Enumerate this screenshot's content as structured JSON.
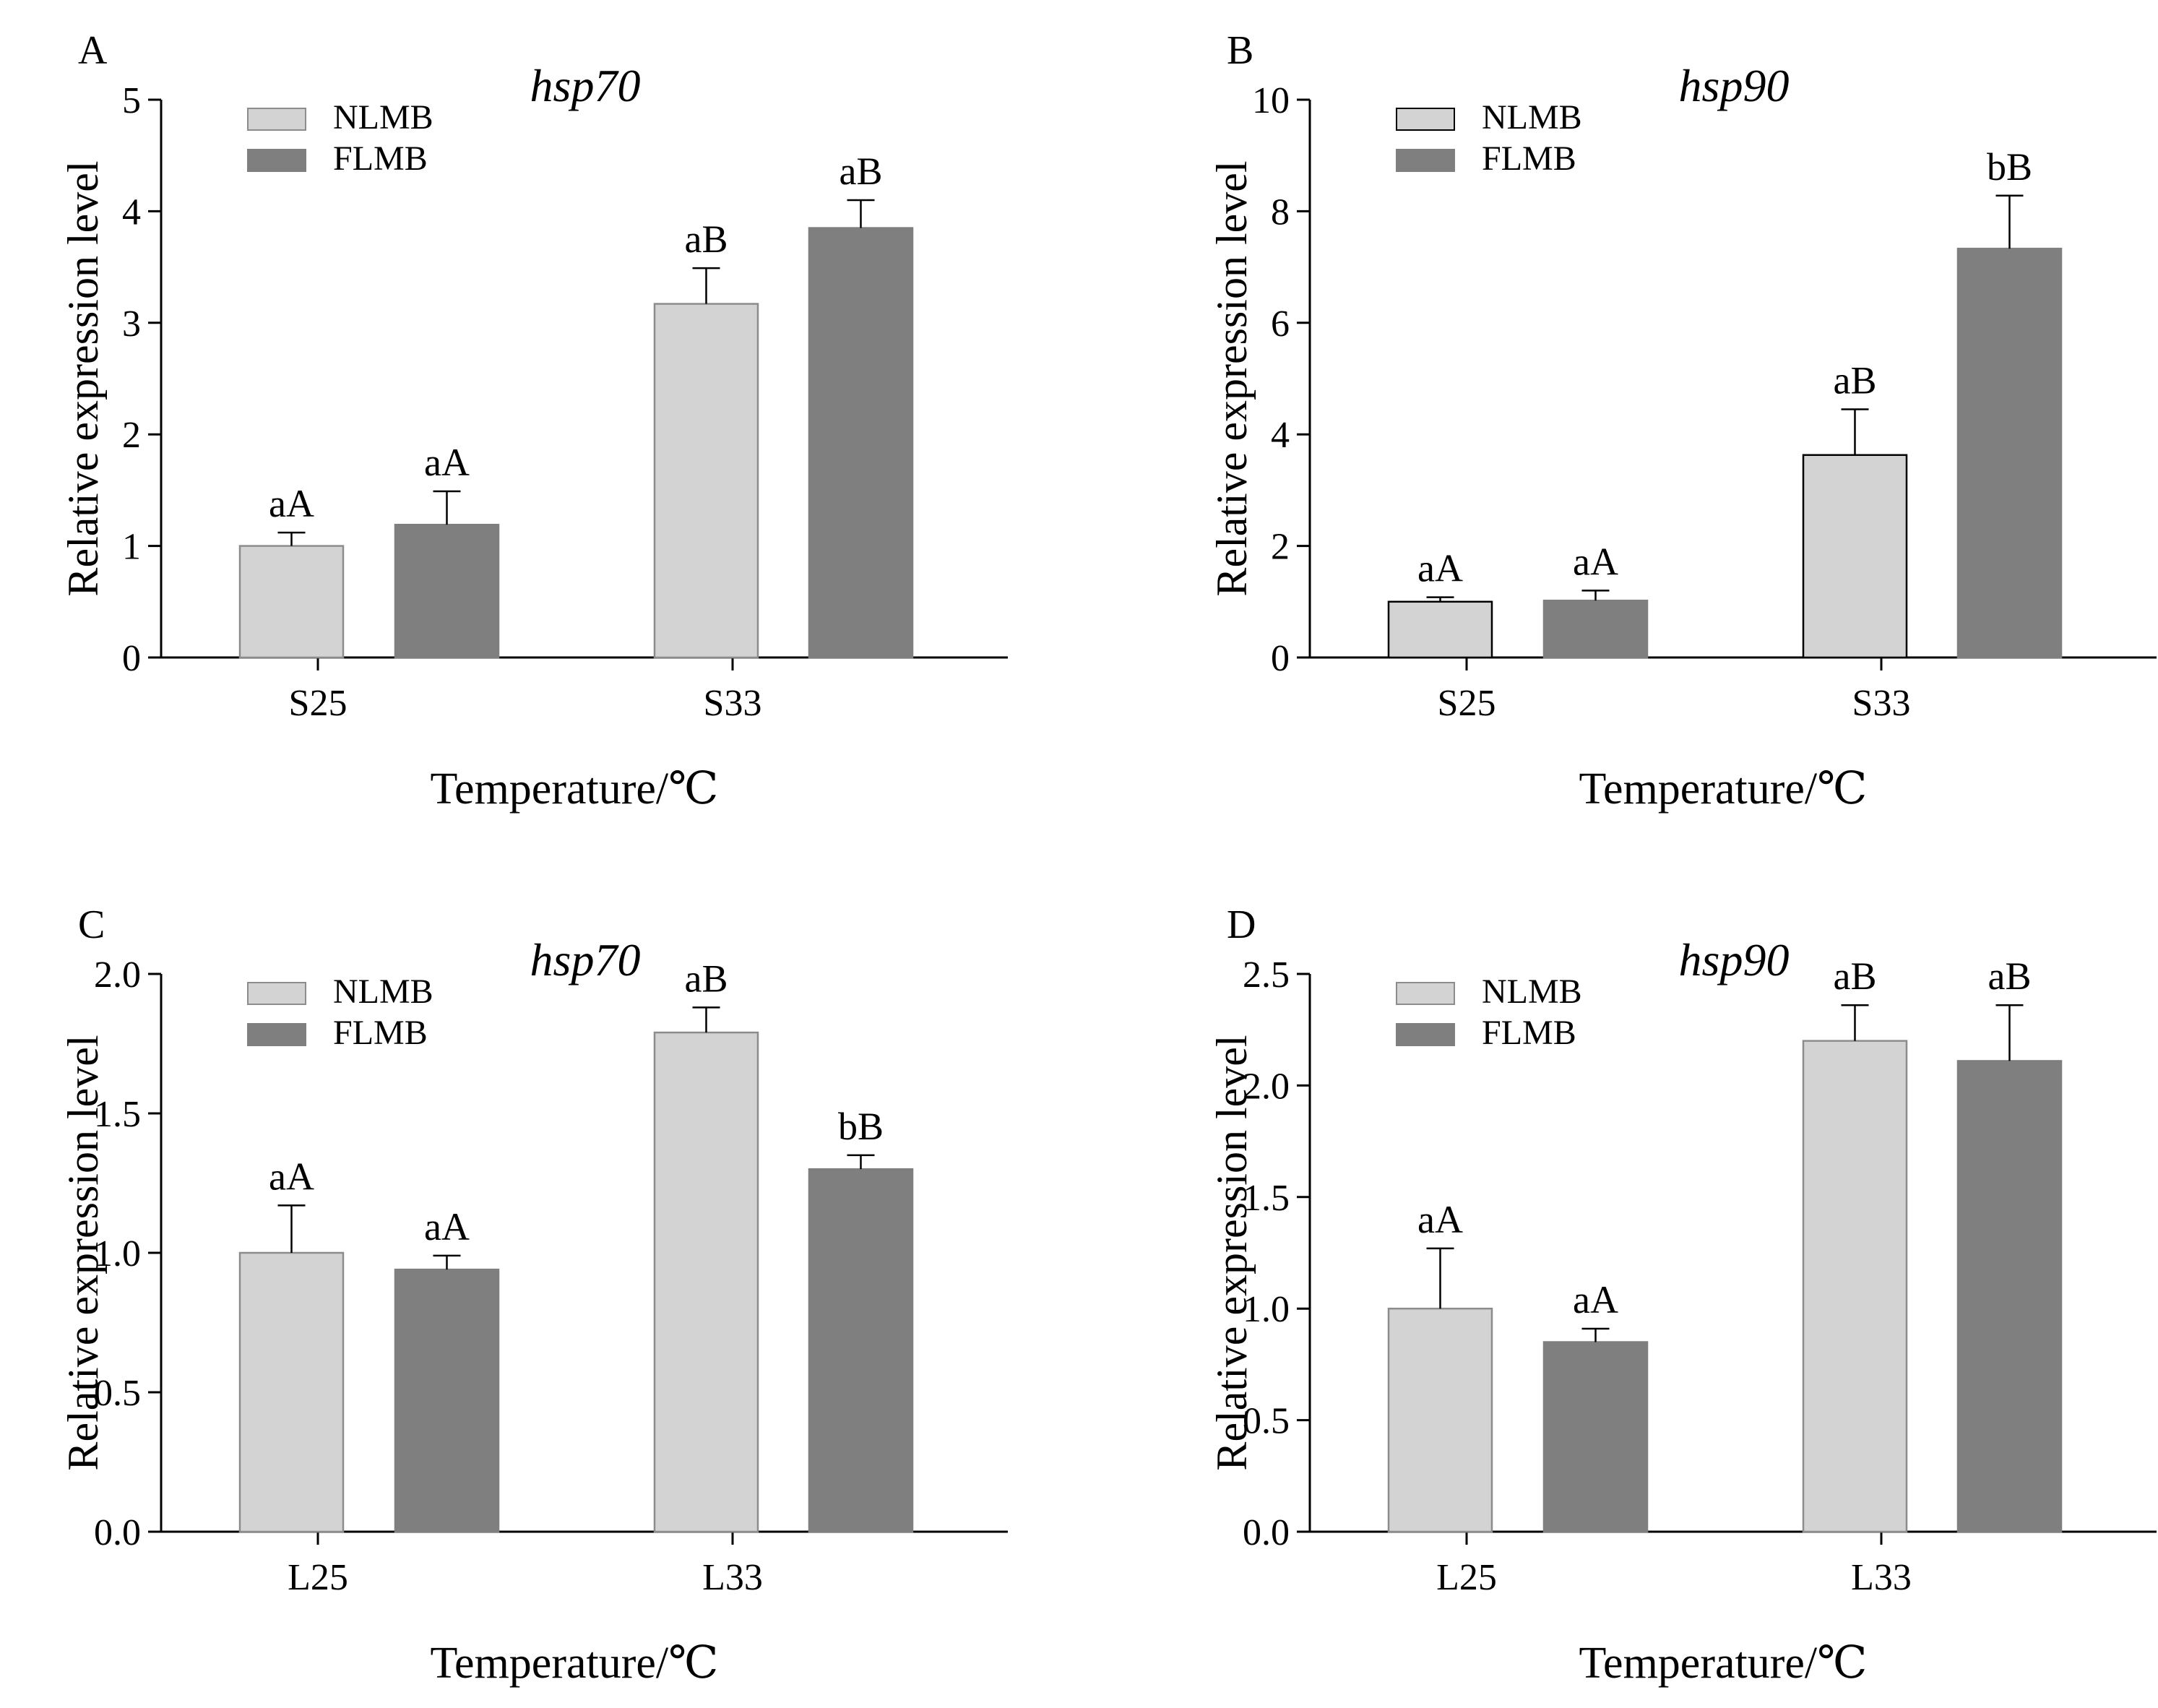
{
  "figure": {
    "colors": {
      "nlmb": "#d3d3d3",
      "flmb": "#7f7f7f",
      "axis": "#000000",
      "nlmb_edge": "#8c8c8c",
      "nlmb_edge_panel_b": "#000000"
    }
  },
  "chart_data": [
    {
      "panel": "A",
      "type": "bar",
      "title": "hsp70",
      "xlabel": "Temperature/℃",
      "ylabel": "Relative expression level",
      "categories": [
        "S25",
        "S33"
      ],
      "ylim": [
        0,
        5
      ],
      "yticks": [
        0,
        1,
        2,
        3,
        4,
        5
      ],
      "yticklabels": [
        "0",
        "1",
        "2",
        "3",
        "4",
        "5"
      ],
      "legend": [
        "NLMB",
        "FLMB"
      ],
      "legend_position": "top-left",
      "series": [
        {
          "name": "NLMB",
          "values": [
            1.0,
            3.17
          ],
          "errors": [
            0.12,
            0.32
          ],
          "labels": [
            "aA",
            "aB"
          ]
        },
        {
          "name": "FLMB",
          "values": [
            1.19,
            3.85
          ],
          "errors": [
            0.3,
            0.25
          ],
          "labels": [
            "aA",
            "aB"
          ]
        }
      ]
    },
    {
      "panel": "B",
      "type": "bar",
      "title": "hsp90",
      "xlabel": "Temperature/℃",
      "ylabel": "Relative expression level",
      "categories": [
        "S25",
        "S33"
      ],
      "ylim": [
        0,
        10
      ],
      "yticks": [
        0,
        2,
        4,
        6,
        8,
        10
      ],
      "yticklabels": [
        "0",
        "2",
        "4",
        "6",
        "8",
        "10"
      ],
      "legend": [
        "NLMB",
        "FLMB"
      ],
      "legend_position": "top-left",
      "series": [
        {
          "name": "NLMB",
          "values": [
            1.0,
            3.63
          ],
          "errors": [
            0.08,
            0.82
          ],
          "labels": [
            "aA",
            "aB"
          ]
        },
        {
          "name": "FLMB",
          "values": [
            1.02,
            7.33
          ],
          "errors": [
            0.18,
            0.95
          ],
          "labels": [
            "aA",
            "bB"
          ]
        }
      ]
    },
    {
      "panel": "C",
      "type": "bar",
      "title": "hsp70",
      "xlabel": "Temperature/℃",
      "ylabel": "Relative expression level",
      "categories": [
        "L25",
        "L33"
      ],
      "ylim": [
        0,
        2.0
      ],
      "yticks": [
        0,
        0.5,
        1.0,
        1.5,
        2.0
      ],
      "yticklabels": [
        "0.0",
        "0.5",
        "1.0",
        "1.5",
        "2.0"
      ],
      "legend": [
        "NLMB",
        "FLMB"
      ],
      "legend_position": "top-left",
      "series": [
        {
          "name": "NLMB",
          "values": [
            1.0,
            1.79
          ],
          "errors": [
            0.17,
            0.09
          ],
          "labels": [
            "aA",
            "aB"
          ]
        },
        {
          "name": "FLMB",
          "values": [
            0.94,
            1.3
          ],
          "errors": [
            0.05,
            0.05
          ],
          "labels": [
            "aA",
            "bB"
          ]
        }
      ]
    },
    {
      "panel": "D",
      "type": "bar",
      "title": "hsp90",
      "xlabel": "Temperature/℃",
      "ylabel": "Relative expression level",
      "categories": [
        "L25",
        "L33"
      ],
      "ylim": [
        0,
        2.5
      ],
      "yticks": [
        0,
        0.5,
        1.0,
        1.5,
        2.0,
        2.5
      ],
      "yticklabels": [
        "0.0",
        "0.5",
        "1.0",
        "1.5",
        "2.0",
        "2.5"
      ],
      "legend": [
        "NLMB",
        "FLMB"
      ],
      "legend_position": "top-left",
      "series": [
        {
          "name": "NLMB",
          "values": [
            1.0,
            2.2
          ],
          "errors": [
            0.27,
            0.16
          ],
          "labels": [
            "aA",
            "aB"
          ]
        },
        {
          "name": "FLMB",
          "values": [
            0.85,
            2.11
          ],
          "errors": [
            0.06,
            0.25
          ],
          "labels": [
            "aA",
            "aB"
          ]
        }
      ]
    }
  ]
}
